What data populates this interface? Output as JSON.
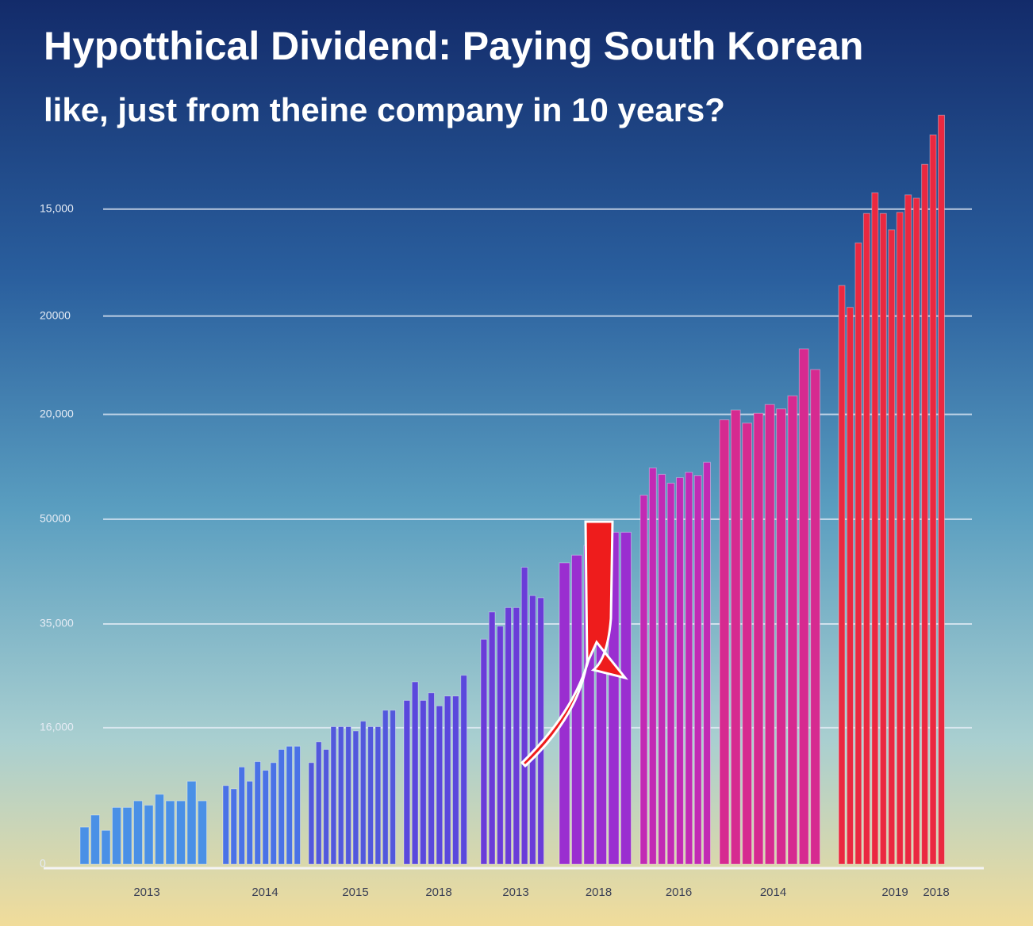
{
  "chart_data": {
    "type": "grouped-bar",
    "title": "Hypotthical Dividend: Paying South Korean",
    "subtitle": "like, just from theine company in 10 years?",
    "ylim": [
      0,
      35000
    ],
    "yticks": [
      0,
      {
        "value": 6250,
        "label": "16,000"
      },
      {
        "value": 11000,
        "label": "35,000"
      },
      {
        "value": 15800,
        "label": "50000"
      },
      {
        "value": 20600,
        "label": "20,000"
      },
      {
        "value": 25100,
        "label": "20000"
      },
      {
        "value": 30000,
        "label": "15,000"
      }
    ],
    "grid": true,
    "groups": [
      {
        "label": "2013",
        "color": "#4a90e6",
        "values": [
          1700,
          2250,
          1550,
          2600,
          2600,
          2900,
          2700,
          3200,
          2900,
          2900,
          3800,
          2900
        ]
      },
      {
        "label": "2014",
        "color": "#4a72e6",
        "values": [
          3600,
          3450,
          4450,
          3800,
          4700,
          4300,
          4650,
          5250,
          5400,
          5400
        ]
      },
      {
        "label": "2015",
        "color": "#5258dc",
        "values": [
          4650,
          5600,
          5250,
          6300,
          6300,
          6300,
          6100,
          6550,
          6300,
          6300,
          7050,
          7050
        ]
      },
      {
        "label": "2018",
        "color": "#5a48dc",
        "values": [
          7500,
          8350,
          7500,
          7850,
          7250,
          7700,
          7700,
          8650
        ]
      },
      {
        "label": "2013",
        "color": "#6a3cd8",
        "values": [
          10300,
          11550,
          10900,
          11750,
          11750,
          13600,
          12300,
          12200
        ]
      },
      {
        "label": "2018",
        "color": "#9a2ed0",
        "values": [
          13800,
          14150,
          14600,
          15250,
          15200,
          15200
        ]
      },
      {
        "label": "2016",
        "color": "#c22ab4",
        "values": [
          16900,
          18150,
          17850,
          17450,
          17700,
          17950,
          17800,
          18400
        ]
      },
      {
        "label": "2014",
        "color": "#d62a90",
        "values": [
          20350,
          20800,
          20200,
          20650,
          21050,
          20850,
          21450,
          23600,
          22650
        ]
      },
      {
        "label": "2019",
        "color": "#ea2840",
        "values": [
          26500,
          25500,
          28450,
          29800,
          30750,
          29800,
          29050,
          29850,
          30650,
          30500,
          32050,
          33400,
          34300
        ]
      },
      {
        "label": "2018",
        "color": "#ee2838",
        "values": []
      }
    ]
  }
}
